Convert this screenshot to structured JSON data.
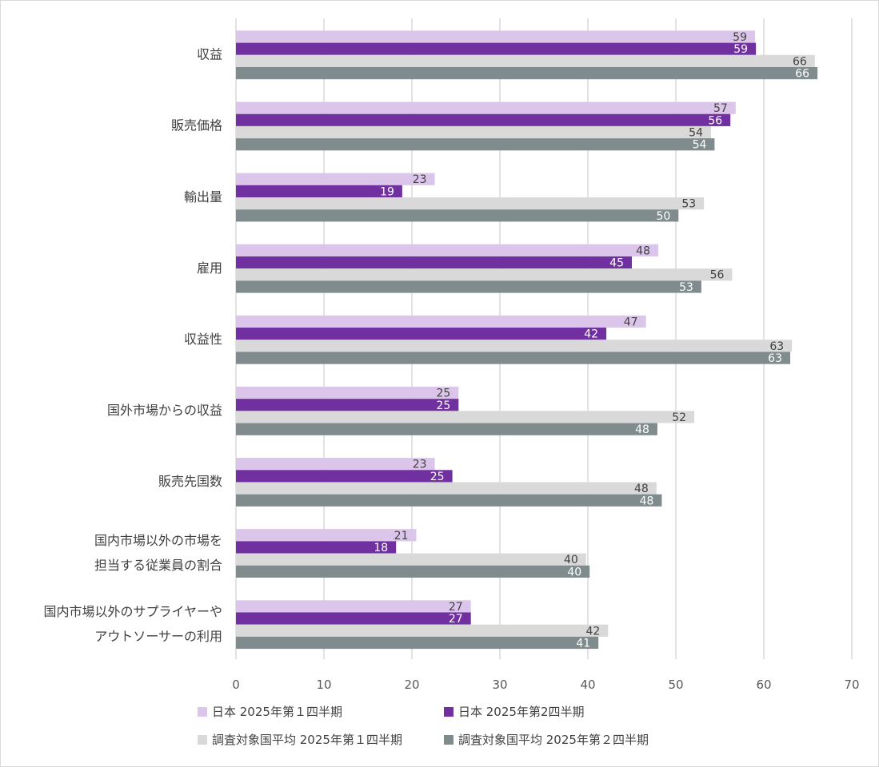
{
  "chart_data": {
    "type": "bar",
    "orientation": "horizontal",
    "categories": [
      [
        "収益"
      ],
      [
        "販売価格"
      ],
      [
        "輸出量"
      ],
      [
        "雇用"
      ],
      [
        "収益性"
      ],
      [
        "国外市場からの収益"
      ],
      [
        "販売先国数"
      ],
      [
        "国内市場以外の市場を",
        "担当する従業員の割合"
      ],
      [
        "国内市場以外のサプライヤーや",
        "アウトソーサーの利用"
      ]
    ],
    "series": [
      {
        "name": "日本 2025年第１四半期",
        "color": "#dcc5ea",
        "label_color": "#404040",
        "values": [
          59,
          57,
          23,
          48,
          47,
          25,
          23,
          21,
          27
        ],
        "bar_values": [
          59,
          56.8,
          22.6,
          48,
          46.6,
          25.3,
          22.6,
          20.5,
          26.7
        ]
      },
      {
        "name": "日本 2025年第2四半期",
        "color": "#7030a0",
        "label_color": "#ffffff",
        "values": [
          59,
          56,
          19,
          45,
          42,
          25,
          25,
          18,
          27
        ],
        "bar_values": [
          59.1,
          56.2,
          18.9,
          45,
          42.1,
          25.3,
          24.6,
          18.2,
          26.7
        ]
      },
      {
        "name": "調査対象国平均 2025年第１四半期",
        "color": "#d9d9d9",
        "label_color": "#404040",
        "values": [
          66,
          54,
          53,
          56,
          63,
          52,
          48,
          40,
          42
        ],
        "bar_values": [
          65.8,
          54,
          53.2,
          56.4,
          63.2,
          52.1,
          47.8,
          39.8,
          42.3
        ]
      },
      {
        "name": "調査対象国平均 2025年第２四半期",
        "color": "#7f8b8c",
        "label_color": "#ffffff",
        "values": [
          66,
          54,
          50,
          53,
          63,
          48,
          48,
          40,
          41
        ],
        "bar_values": [
          66.1,
          54.4,
          50.3,
          52.9,
          63,
          47.9,
          48.4,
          40.2,
          41.2
        ]
      }
    ],
    "xlim": [
      0,
      70
    ],
    "xticks": [
      "0",
      "10",
      "20",
      "30",
      "40",
      "50",
      "60",
      "70"
    ],
    "grid": true,
    "legend_position": "bottom",
    "gridline_color": "#d9d9d9"
  }
}
